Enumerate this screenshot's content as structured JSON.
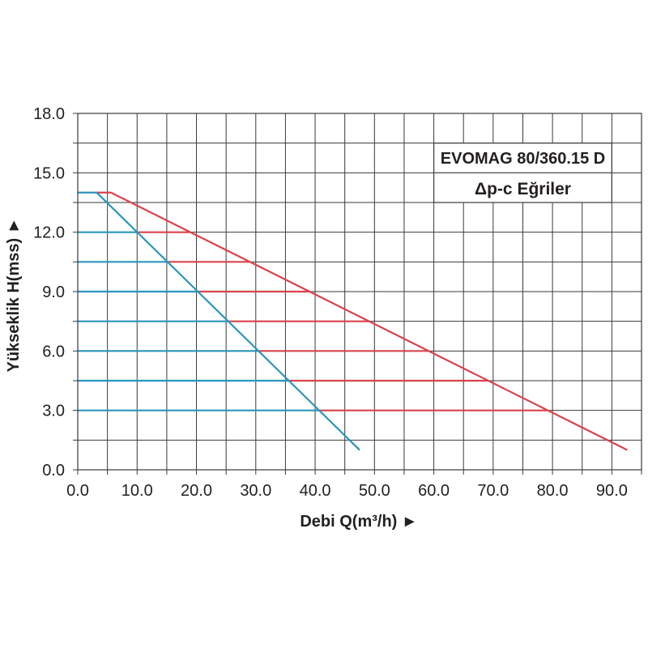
{
  "chart_data": {
    "type": "line",
    "title": "EVOMAG 80/360.15 D",
    "subtitle": "Δp-c Eğriler",
    "xlabel": "Debi Q(m³/h) ►",
    "ylabel": "Yükseklik H(mss) ►",
    "xlim": [
      0,
      95
    ],
    "ylim": [
      0,
      18
    ],
    "x_ticks": [
      "0.0",
      "10.0",
      "20.0",
      "30.0",
      "40.0",
      "50.0",
      "60.0",
      "70.0",
      "80.0",
      "90.0"
    ],
    "y_ticks": [
      "0.0",
      "3.0",
      "6.0",
      "9.0",
      "12.0",
      "15.0",
      "18.0"
    ],
    "grid": true,
    "x_grid_step": 5,
    "y_grid_step": 1.5,
    "series": [
      {
        "color": "#2b95bb",
        "x": [
          3.2,
          47.5
        ],
        "y": [
          14.0,
          1.0
        ]
      },
      {
        "color": "#d9434b",
        "x": [
          5.6,
          92.6
        ],
        "y": [
          14.0,
          1.0
        ]
      }
    ],
    "setpoint_lines": [
      {
        "h": 14.0,
        "q_min": 3.2,
        "q_max": 5.6
      },
      {
        "h": 12.0,
        "q_min": 10.0,
        "q_max": 19.0
      },
      {
        "h": 10.5,
        "q_min": 15.1,
        "q_max": 29.0
      },
      {
        "h": 9.0,
        "q_min": 20.2,
        "q_max": 39.1
      },
      {
        "h": 7.5,
        "q_min": 25.3,
        "q_max": 49.1
      },
      {
        "h": 6.0,
        "q_min": 30.5,
        "q_max": 59.2
      },
      {
        "h": 4.5,
        "q_min": 35.6,
        "q_max": 69.2
      },
      {
        "h": 3.0,
        "q_min": 40.7,
        "q_max": 79.2
      }
    ]
  }
}
